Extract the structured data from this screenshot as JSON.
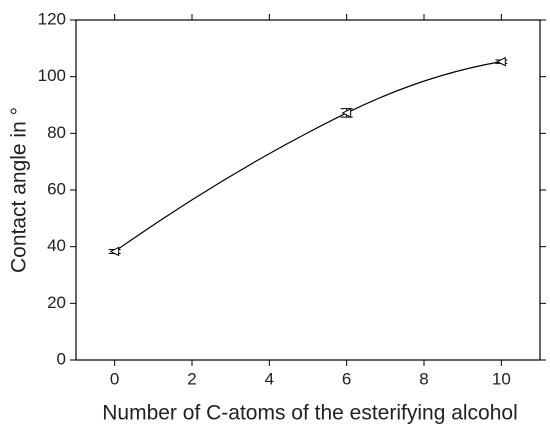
{
  "chart_data": {
    "type": "line",
    "x_label": "Number of C-atoms of the esterifying alcohol",
    "y_label": "Contact angle in °",
    "x": [
      0,
      6,
      10
    ],
    "series": [
      {
        "color": "#000000",
        "values": [
          38.3,
          87.2,
          105.3
        ],
        "errors": [
          0.7,
          1.5,
          0.6
        ]
      }
    ],
    "xlim": [
      -1,
      11
    ],
    "xticks": [
      0,
      2,
      4,
      6,
      8,
      10
    ],
    "ylim": [
      0,
      120
    ],
    "yticks": [
      0,
      20,
      40,
      60,
      80,
      100,
      120
    ]
  }
}
